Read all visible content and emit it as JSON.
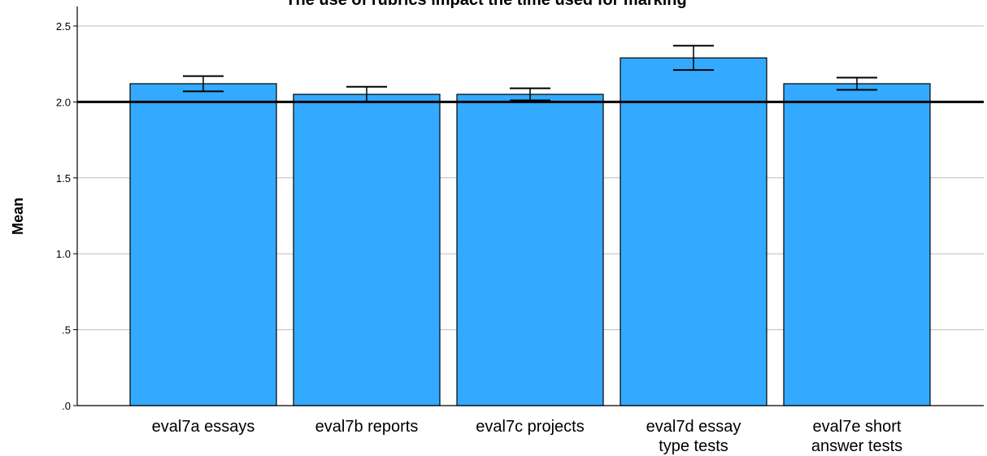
{
  "chart_data": {
    "type": "bar",
    "title": "The use of rubrics impact the time used for marking",
    "xlabel": "",
    "ylabel": "Mean",
    "ylim": [
      0,
      2.6
    ],
    "yticks": [
      {
        "value": 0,
        "label": ".0"
      },
      {
        "value": 0.5,
        "label": ".5"
      },
      {
        "value": 1.0,
        "label": "1.0"
      },
      {
        "value": 1.5,
        "label": "1.5"
      },
      {
        "value": 2.0,
        "label": "2.0"
      },
      {
        "value": 2.5,
        "label": "2.5"
      }
    ],
    "categories": [
      [
        "eval7a essays"
      ],
      [
        "eval7b reports"
      ],
      [
        "eval7c projects"
      ],
      [
        "eval7d essay",
        "type tests"
      ],
      [
        "eval7e short",
        "answer tests"
      ]
    ],
    "values": [
      2.12,
      2.05,
      2.05,
      2.29,
      2.12
    ],
    "error_low": [
      2.07,
      2.0,
      2.01,
      2.21,
      2.08
    ],
    "error_high": [
      2.17,
      2.1,
      2.09,
      2.37,
      2.16
    ],
    "reference_line": 2.0,
    "grid": true,
    "bar_color": "#33aaff",
    "bar_edge_color": "#000000",
    "grid_color": "#bdbdbd"
  }
}
